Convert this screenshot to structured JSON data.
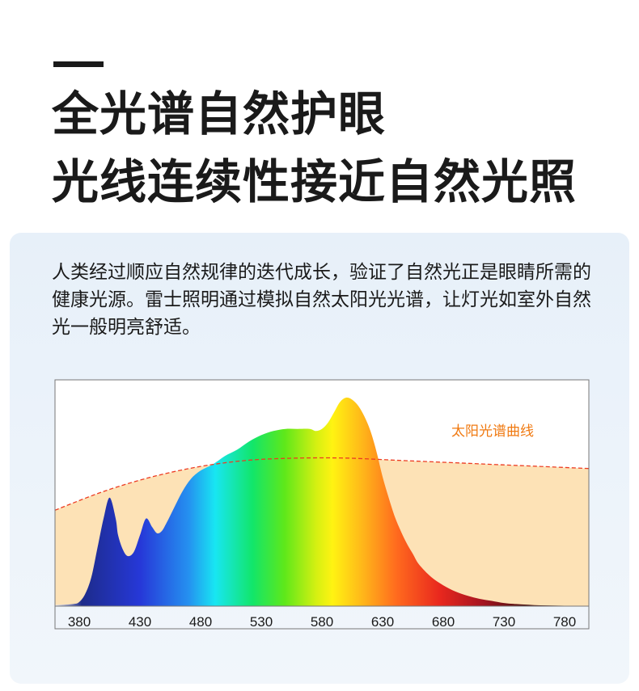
{
  "header": {
    "line1": "全光谱自然护眼",
    "line2": "光线连续性接近自然光照"
  },
  "description": "人类经过顺应自然规律的迭代成长，验证了自然光正是眼睛所需的健康光源。雷士照明通过模拟自然太阳光光谱，让灯光如室外自然光一般明亮舒适。",
  "colors": {
    "sun_fill": "#fde2b6",
    "sun_line": "#ec3b22",
    "annotation": "#f07a12",
    "text": "#1a1a1a"
  },
  "chart_data": {
    "type": "area",
    "x_unit": "nm",
    "xlim": [
      360,
      800
    ],
    "ylim": [
      0,
      1.0
    ],
    "grid": false,
    "legend": "none",
    "x_ticks": [
      380,
      430,
      480,
      530,
      580,
      630,
      680,
      730,
      780
    ],
    "annotation": "太阳光谱曲线",
    "series": [
      {
        "style": "spectrum-gradient-area",
        "x": [
          360,
          375,
          380,
          385,
          390,
          395,
          400,
          405,
          410,
          412,
          416,
          420,
          425,
          430,
          435,
          440,
          444,
          448,
          452,
          458,
          465,
          472,
          480,
          490,
          500,
          510,
          520,
          530,
          540,
          550,
          560,
          570,
          575,
          580,
          585,
          590,
          595,
          600,
          605,
          610,
          615,
          620,
          625,
          630,
          635,
          640,
          645,
          650,
          655,
          660,
          670,
          680,
          690,
          700,
          710,
          720,
          730,
          740,
          750,
          760,
          770,
          780,
          790,
          800
        ],
        "y": [
          0.005,
          0.01,
          0.02,
          0.06,
          0.14,
          0.28,
          0.42,
          0.52,
          0.42,
          0.34,
          0.27,
          0.24,
          0.26,
          0.34,
          0.42,
          0.38,
          0.35,
          0.36,
          0.4,
          0.47,
          0.55,
          0.61,
          0.65,
          0.68,
          0.72,
          0.75,
          0.79,
          0.82,
          0.84,
          0.85,
          0.85,
          0.85,
          0.84,
          0.85,
          0.88,
          0.93,
          0.98,
          1.0,
          0.99,
          0.96,
          0.91,
          0.84,
          0.74,
          0.62,
          0.52,
          0.43,
          0.36,
          0.3,
          0.25,
          0.2,
          0.14,
          0.1,
          0.07,
          0.05,
          0.035,
          0.025,
          0.015,
          0.01,
          0.007,
          0.004,
          0.003,
          0.002,
          0.001,
          0.0
        ]
      },
      {
        "style": "dashed-filled",
        "x": [
          360,
          400,
          440,
          480,
          520,
          560,
          600,
          640,
          680,
          720,
          760,
          800
        ],
        "y": [
          0.46,
          0.55,
          0.62,
          0.67,
          0.7,
          0.71,
          0.71,
          0.7,
          0.69,
          0.68,
          0.67,
          0.66
        ]
      }
    ]
  }
}
